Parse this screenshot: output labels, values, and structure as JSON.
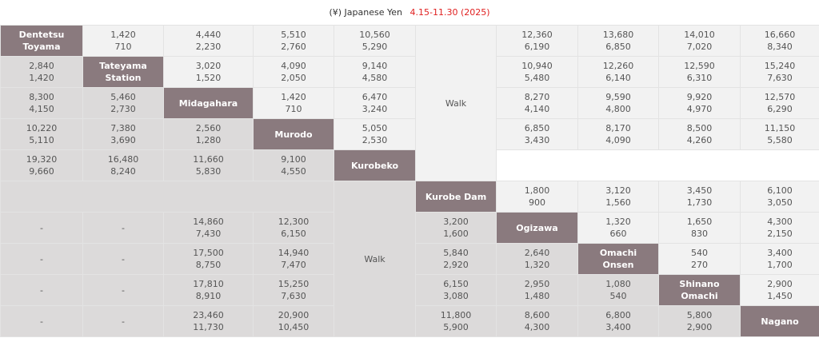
{
  "header": {
    "currency": "(¥) Japanese Yen",
    "period": "4.15-11.30 (2025)",
    "period_color": "#e02020"
  },
  "stations": [
    "Dentetsu\nToyama",
    "Tateyama\nStation",
    "Midagahara",
    "Murodo",
    "Kurobeko",
    "Kurobe Dam",
    "Ogizawa",
    "Omachi\nOnsen",
    "Shinano\nOmachi",
    "Nagano"
  ],
  "walk_label": "Walk",
  "dash": "-",
  "fares": {
    "r0": [
      "1,420\n710",
      "4,440\n2,230",
      "5,510\n2,760",
      "10,560\n5,290",
      "12,360\n6,190",
      "13,680\n6,850",
      "14,010\n7,020",
      "16,660\n8,340"
    ],
    "r1": [
      "2,840\n1,420",
      "3,020\n1,520",
      "4,090\n2,050",
      "9,140\n4,580",
      "10,940\n5,480",
      "12,260\n6,140",
      "12,590\n6,310",
      "15,240\n7,630"
    ],
    "r2": [
      "8,300\n4,150",
      "5,460\n2,730",
      "1,420\n710",
      "6,470\n3,240",
      "8,270\n4,140",
      "9,590\n4,800",
      "9,920\n4,970",
      "12,570\n6,290"
    ],
    "r3": [
      "10,220\n5,110",
      "7,380\n3,690",
      "2,560\n1,280",
      "5,050\n2,530",
      "6,850\n3,430",
      "8,170\n4,090",
      "8,500\n4,260",
      "11,150\n5,580"
    ],
    "r4": [
      "19,320\n9,660",
      "16,480\n8,240",
      "11,660\n5,830",
      "9,100\n4,550"
    ],
    "r5": [
      "1,800\n900",
      "3,120\n1,560",
      "3,450\n1,730",
      "6,100\n3,050"
    ],
    "r6": [
      "14,860\n7,430",
      "12,300\n6,150",
      "3,200\n1,600",
      "1,320\n660",
      "1,650\n830",
      "4,300\n2,150"
    ],
    "r7": [
      "17,500\n8,750",
      "14,940\n7,470",
      "5,840\n2,920",
      "2,640\n1,320",
      "540\n270",
      "3,400\n1,700"
    ],
    "r8": [
      "17,810\n8,910",
      "15,250\n7,630",
      "6,150\n3,080",
      "2,950\n1,480",
      "1,080\n540",
      "2,900\n1,450"
    ],
    "r9": [
      "23,460\n11,730",
      "20,900\n10,450",
      "11,800\n5,900",
      "8,600\n4,300",
      "6,800\n3,400",
      "5,800\n2,900"
    ]
  }
}
